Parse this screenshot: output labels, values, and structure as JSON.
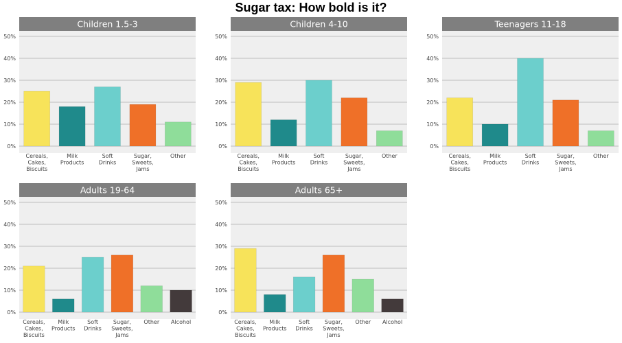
{
  "title": "Sugar tax: How bold is it?",
  "colors": {
    "Cereals, Cakes, Biscuits": "#f7e35a",
    "Milk Products": "#1f8a8b",
    "Soft Drinks": "#6ccfcc",
    "Sugar, Sweets, Jams": "#ef7028",
    "Other": "#8fdd9a",
    "Alcohol": "#433a3b",
    "panel_bg": "#efefef",
    "strip_bg": "#7f7f7f",
    "grid": "#bdbdbd"
  },
  "chart_data": [
    {
      "type": "bar",
      "title": "Children 1.5-3",
      "categories": [
        "Cereals, Cakes, Biscuits",
        "Milk Products",
        "Soft Drinks",
        "Sugar, Sweets, Jams",
        "Other"
      ],
      "category_lines": [
        [
          "Cereals,",
          "Cakes,",
          "Biscuits"
        ],
        [
          "Milk",
          "Products"
        ],
        [
          "Soft",
          "Drinks"
        ],
        [
          "Sugar,",
          "Sweets,",
          "Jams"
        ],
        [
          "Other"
        ]
      ],
      "values": [
        25,
        18,
        27,
        19,
        11
      ],
      "ylim": [
        0,
        50
      ],
      "yticks": [
        "0%",
        "10%",
        "20%",
        "30%",
        "40%",
        "50%"
      ],
      "grid": true
    },
    {
      "type": "bar",
      "title": "Children 4-10",
      "categories": [
        "Cereals, Cakes, Biscuits",
        "Milk Products",
        "Soft Drinks",
        "Sugar, Sweets, Jams",
        "Other"
      ],
      "category_lines": [
        [
          "Cereals,",
          "Cakes,",
          "Biscuits"
        ],
        [
          "Milk",
          "Products"
        ],
        [
          "Soft",
          "Drinks"
        ],
        [
          "Sugar,",
          "Sweets,",
          "Jams"
        ],
        [
          "Other"
        ]
      ],
      "values": [
        29,
        12,
        30,
        22,
        7
      ],
      "ylim": [
        0,
        50
      ],
      "yticks": [
        "0%",
        "10%",
        "20%",
        "30%",
        "40%",
        "50%"
      ],
      "grid": true
    },
    {
      "type": "bar",
      "title": "Teenagers 11-18",
      "categories": [
        "Cereals, Cakes, Biscuits",
        "Milk Products",
        "Soft Drinks",
        "Sugar, Sweets, Jams",
        "Other"
      ],
      "category_lines": [
        [
          "Cereals,",
          "Cakes,",
          "Biscuits"
        ],
        [
          "Milk",
          "Products"
        ],
        [
          "Soft",
          "Drinks"
        ],
        [
          "Sugar,",
          "Sweets,",
          "Jams"
        ],
        [
          "Other"
        ]
      ],
      "values": [
        22,
        10,
        40,
        21,
        7
      ],
      "ylim": [
        0,
        50
      ],
      "yticks": [
        "0%",
        "10%",
        "20%",
        "30%",
        "40%",
        "50%"
      ],
      "grid": true
    },
    {
      "type": "bar",
      "title": "Adults 19-64",
      "categories": [
        "Cereals, Cakes, Biscuits",
        "Milk Products",
        "Soft Drinks",
        "Sugar, Sweets, Jams",
        "Other",
        "Alcohol"
      ],
      "category_lines": [
        [
          "Cereals,",
          "Cakes,",
          "Biscuits"
        ],
        [
          "Milk",
          "Products"
        ],
        [
          "Soft",
          "Drinks"
        ],
        [
          "Sugar,",
          "Sweets,",
          "Jams"
        ],
        [
          "Other"
        ],
        [
          "Alcohol"
        ]
      ],
      "values": [
        21,
        6,
        25,
        26,
        12,
        10
      ],
      "ylim": [
        0,
        50
      ],
      "yticks": [
        "0%",
        "10%",
        "20%",
        "30%",
        "40%",
        "50%"
      ],
      "grid": true
    },
    {
      "type": "bar",
      "title": "Adults 65+",
      "categories": [
        "Cereals, Cakes, Biscuits",
        "Milk Products",
        "Soft Drinks",
        "Sugar, Sweets, Jams",
        "Other",
        "Alcohol"
      ],
      "category_lines": [
        [
          "Cereals,",
          "Cakes,",
          "Biscuits"
        ],
        [
          "Milk",
          "Products"
        ],
        [
          "Soft",
          "Drinks"
        ],
        [
          "Sugar,",
          "Sweets,",
          "Jams"
        ],
        [
          "Other"
        ],
        [
          "Alcohol"
        ]
      ],
      "values": [
        29,
        8,
        16,
        26,
        15,
        6
      ],
      "ylim": [
        0,
        50
      ],
      "yticks": [
        "0%",
        "10%",
        "20%",
        "30%",
        "40%",
        "50%"
      ],
      "grid": true
    }
  ]
}
